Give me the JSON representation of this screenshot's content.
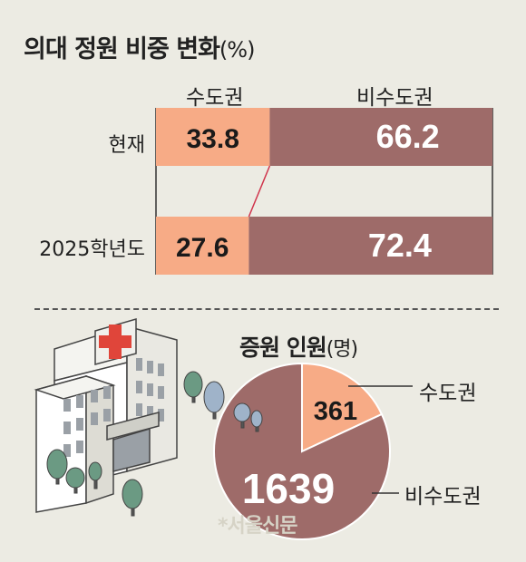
{
  "title": "의대 정원 비중 변화",
  "title_unit": "(%)",
  "chart_data": [
    {
      "type": "bar",
      "stacked": true,
      "orientation": "horizontal",
      "categories": [
        "현재",
        "2025학년도"
      ],
      "series": [
        {
          "name": "수도권",
          "values": [
            33.8,
            27.6
          ],
          "color": "#f7ab86"
        },
        {
          "name": "비수도권",
          "values": [
            66.2,
            72.4
          ],
          "color": "#9e6b69"
        }
      ],
      "xlim": [
        0,
        100
      ]
    },
    {
      "type": "pie",
      "title": "증원 인원",
      "unit": "(명)",
      "labels": [
        "수도권",
        "비수도권"
      ],
      "values": [
        361,
        1639
      ],
      "colors": [
        "#f7ab86",
        "#9e6b69"
      ]
    }
  ],
  "watermark": "서울신문"
}
